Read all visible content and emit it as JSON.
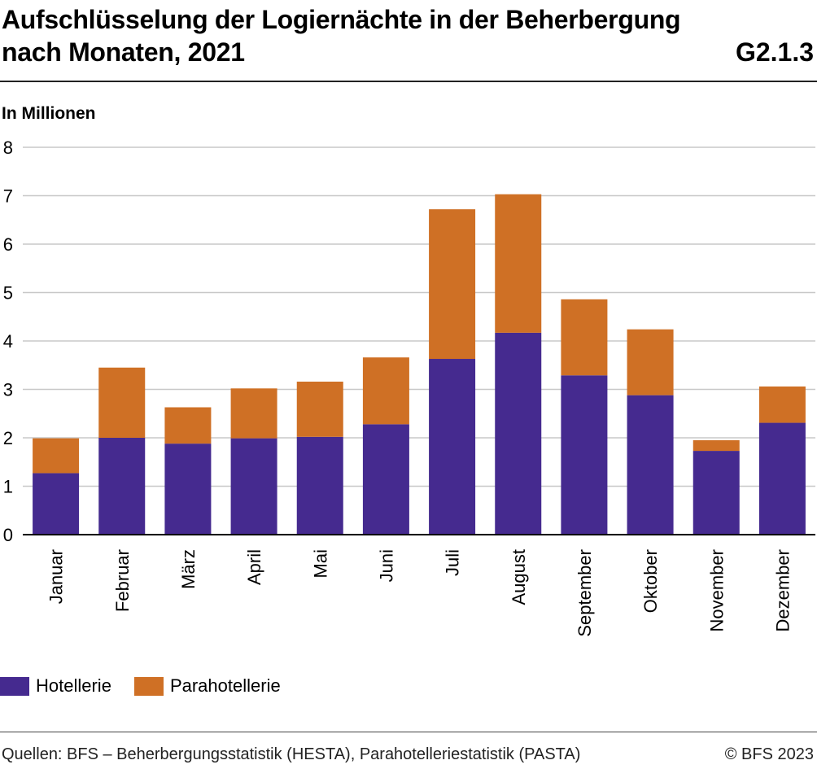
{
  "header": {
    "title_line1": "Aufschlüsselung der Logiernächte in der Beherbergung",
    "title_line2": "nach Monaten, 2021",
    "chart_id": "G2.1.3",
    "unit_label": "In Millionen"
  },
  "colors": {
    "hotellerie": "#452a8f",
    "parahotellerie": "#cf7025",
    "grid": "#c8c8c8",
    "axis": "#000000"
  },
  "chart_data": {
    "type": "bar",
    "stacked": true,
    "categories": [
      "Januar",
      "Februar",
      "März",
      "April",
      "Mai",
      "Juni",
      "Juli",
      "August",
      "September",
      "Oktober",
      "November",
      "Dezember"
    ],
    "series": [
      {
        "name": "Hotellerie",
        "values": [
          1.27,
          2.0,
          1.88,
          1.99,
          2.02,
          2.28,
          3.63,
          4.17,
          3.29,
          2.88,
          1.73,
          2.31
        ]
      },
      {
        "name": "Parahotellerie",
        "values": [
          0.72,
          1.45,
          0.75,
          1.03,
          1.14,
          1.38,
          3.09,
          2.86,
          1.57,
          1.36,
          0.22,
          0.75
        ]
      }
    ],
    "ylim": [
      0,
      8
    ],
    "yticks": [
      0,
      1,
      2,
      3,
      4,
      5,
      6,
      7,
      8
    ],
    "grid": true,
    "legend_position": "bottom-left"
  },
  "footer": {
    "source": "Quellen: BFS – Beherbergungsstatistik (HESTA), Parahotelleriestatistik (PASTA)",
    "copyright": "© BFS 2023"
  }
}
